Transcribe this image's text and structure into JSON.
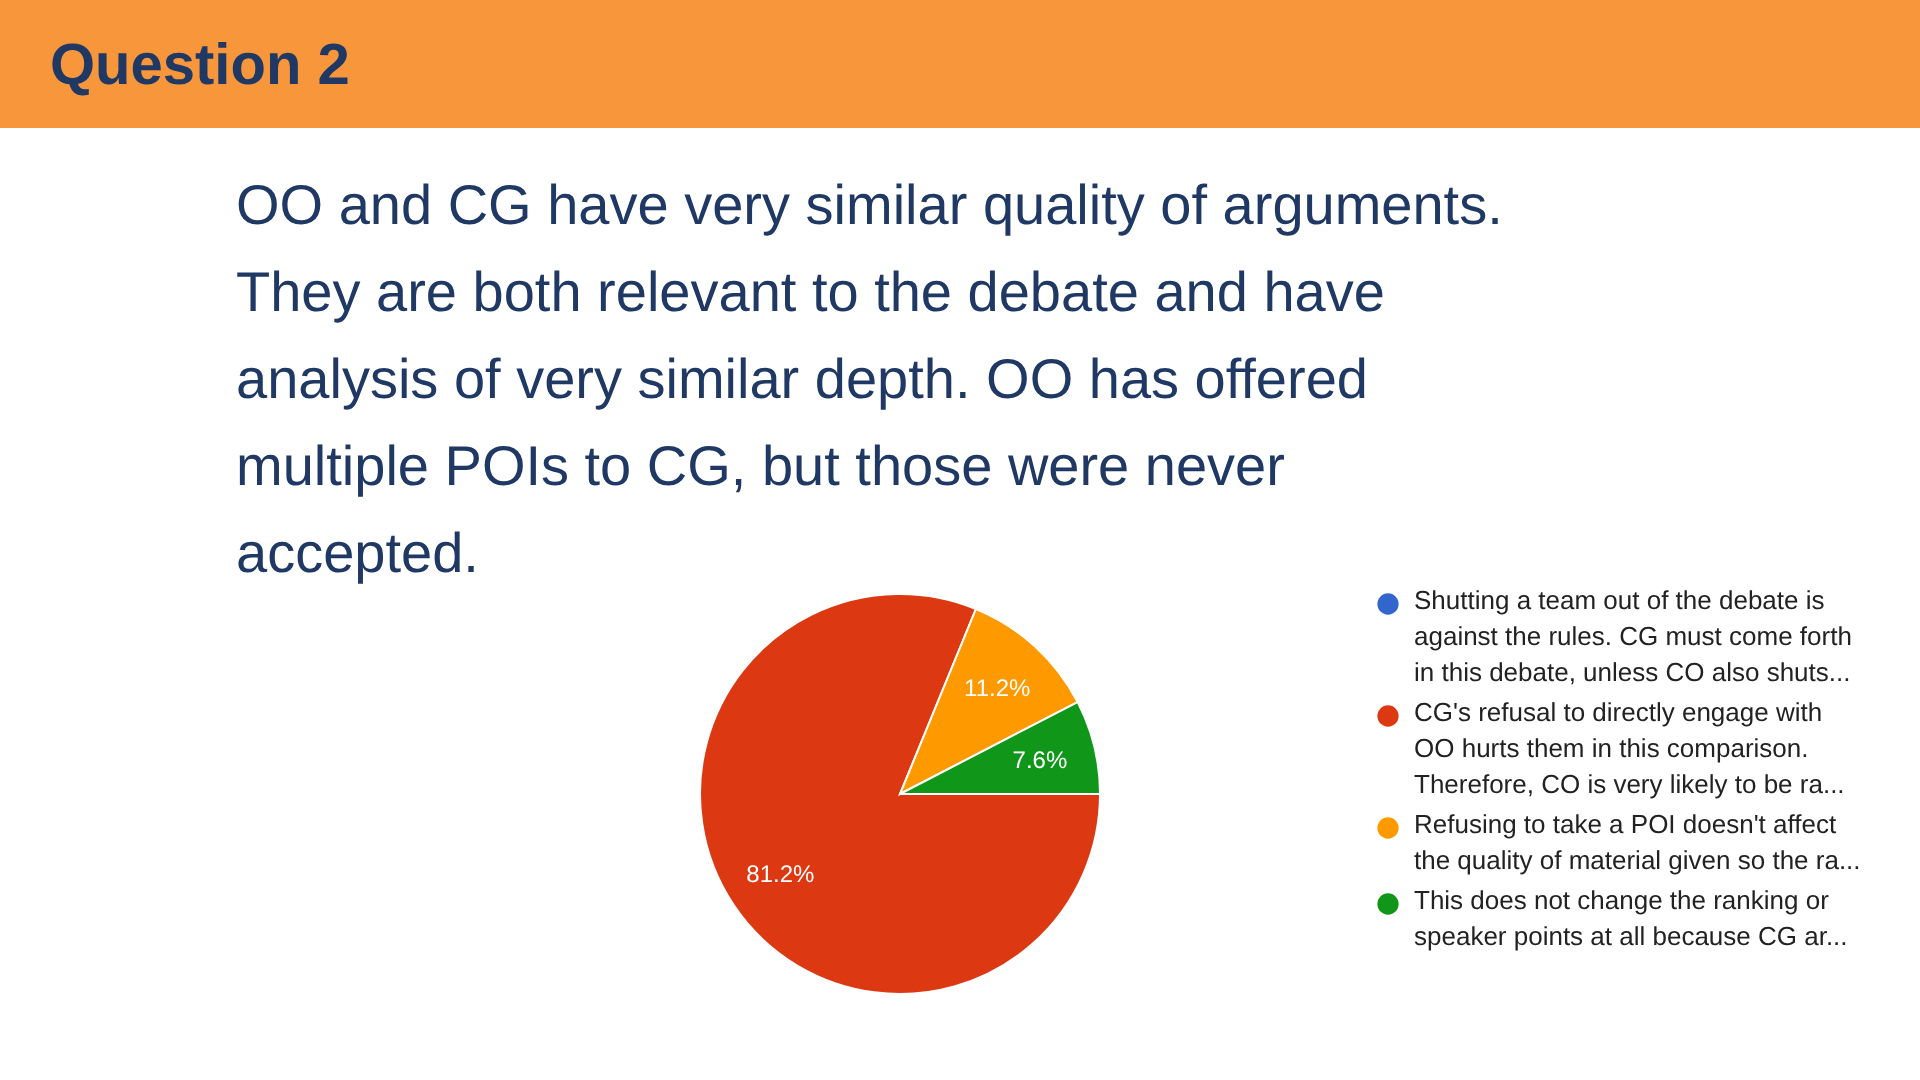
{
  "chart_data": {
    "type": "pie",
    "title": "Question 2",
    "subtitle": "OO and CG have very similar quality of arguments. They are both relevant to the debate and have analysis of very similar depth. OO has offered multiple POIs to CG, but those were never accepted.",
    "categories": [
      "Shutting a team out of the debate is against the rules. CG must come forth in this debate, unless CO also shuts...",
      "CG's refusal to directly engage with OO hurts them in this comparison. Therefore, CO is very likely to be ra...",
      "Refusing to take a POI doesn't affect the quality of material given so the ra...",
      "This does not change the ranking or speaker points at all because CG ar..."
    ],
    "values": [
      0,
      81.2,
      11.2,
      7.6
    ],
    "colors": [
      "#3366cc",
      "#dc3912",
      "#ff9900",
      "#109618"
    ],
    "value_labels": [
      null,
      "81.2%",
      "11.2%",
      "7.6%"
    ],
    "legend": "right"
  }
}
